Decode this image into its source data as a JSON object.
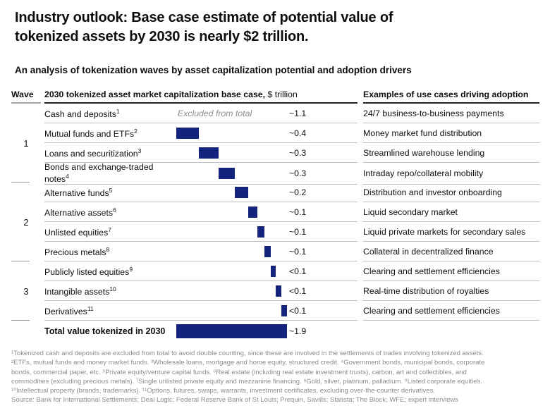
{
  "title_lines": [
    "Industry outlook: Base case estimate of potential value of",
    "tokenized assets by 2030 is nearly $2 trillion."
  ],
  "subtitle": "An analysis of tokenization waves by asset capitalization potential and adoption drivers",
  "table": {
    "col_wave": "Wave",
    "col_main_bold": "2030 tokenized asset market capitalization base case,",
    "col_main_unit": " $ trillion",
    "col_use": "Examples of use cases driving adoption",
    "waves": [
      {
        "label": "1"
      },
      {
        "label": "2"
      },
      {
        "label": "3"
      }
    ]
  },
  "rows": [
    {
      "label": "Cash and deposits",
      "sup": "1",
      "note": "Excluded from total",
      "value": "~1.1",
      "use_case": "24/7 business-to-business payments"
    },
    {
      "label": "Mutual funds and ETFs",
      "sup": "2",
      "value": "~0.4",
      "bar": {
        "start": 0,
        "width": 0.39
      },
      "use_case": "Money market fund distribution"
    },
    {
      "label": "Loans and securitization",
      "sup": "3",
      "value": "~0.3",
      "bar": {
        "start": 0.39,
        "width": 0.34
      },
      "use_case": "Streamlined warehouse lending"
    },
    {
      "label": "Bonds and exchange-traded notes",
      "sup": "4",
      "value": "~0.3",
      "bar": {
        "start": 0.73,
        "width": 0.28
      },
      "use_case": "Intraday repo/collateral mobility"
    },
    {
      "label": "Alternative funds",
      "sup": "5",
      "value": "~0.2",
      "bar": {
        "start": 1.01,
        "width": 0.22
      },
      "use_case": "Distribution and investor onboarding"
    },
    {
      "label": "Alternative assets",
      "sup": "6",
      "value": "~0.1",
      "bar": {
        "start": 1.23,
        "width": 0.16
      },
      "use_case": "Liquid secondary market"
    },
    {
      "label": "Unlisted equities",
      "sup": "7",
      "value": "~0.1",
      "bar": {
        "start": 1.39,
        "width": 0.12
      },
      "use_case": "Liquid private markets for secondary sales"
    },
    {
      "label": "Precious metals",
      "sup": "8",
      "value": "~0.1",
      "bar": {
        "start": 1.51,
        "width": 0.11
      },
      "use_case": "Collateral in decentralized finance"
    },
    {
      "label": "Publicly listed equities",
      "sup": "9",
      "value": "<0.1",
      "bar": {
        "start": 1.62,
        "width": 0.09
      },
      "use_case": "Clearing and settlement efficiencies"
    },
    {
      "label": "Intangible assets",
      "sup": "10",
      "value": "<0.1",
      "bar": {
        "start": 1.71,
        "width": 0.09
      },
      "use_case": "Real-time distribution of royalties"
    },
    {
      "label": "Derivatives",
      "sup": "11",
      "value": "<0.1",
      "bar": {
        "start": 1.8,
        "width": 0.1
      },
      "use_case": "Clearing and settlement efficiencies"
    }
  ],
  "total": {
    "label": "Total value tokenized in 2030",
    "value": "~1.9",
    "bar": {
      "start": 0,
      "width": 1.9
    }
  },
  "footnote_lines": [
    "¹Tokenized cash and deposits are excluded from total to avoid double counting, since these are involved in the settlements of trades involving tokenized assets.",
    "²ETFs, mutual funds and money market funds. ³Wholesale loans, mortgage and home equity, structured credit. ⁴Government bonds, municipal bonds, corporate",
    "bonds, commercial paper, etc. ⁵Private equity/venture capital funds. ⁶Real estate (including real estate investment trusts), carbon, art and collectibles, and",
    "commodities (excluding precious metals). ⁷Single unlisted private equity and mezzanine financing. ⁸Gold, silver, platinum, palladium. ⁹Listed corporate equities.",
    "¹⁰Intellectual property (brands, trademarks). ¹¹Options, futures, swaps, warrants, investment certificates, excluding over-the-counter derivatives.",
    "Source: Bank for International Settlements; Deal Logic; Federal Reserve Bank of St Louis; Prequin, Savills; Statista; The Block; WFE; expert interviews"
  ],
  "colors": {
    "bar_navy": "#14247e",
    "footnote_gray": "#8c8c8c"
  },
  "chart_data": {
    "type": "bar",
    "subtype": "waterfall",
    "title": "2030 tokenized asset market capitalization base case, $ trillion",
    "unit": "$ trillion",
    "orientation": "horizontal",
    "xlim": [
      0,
      1.9
    ],
    "grid": false,
    "bar_color": "#14247e",
    "categories": [
      "Cash and deposits",
      "Mutual funds and ETFs",
      "Loans and securitization",
      "Bonds and exchange-traded notes",
      "Alternative funds",
      "Alternative assets",
      "Unlisted equities",
      "Precious metals",
      "Publicly listed equities",
      "Intangible assets",
      "Derivatives",
      "Total value tokenized in 2030"
    ],
    "value_labels": [
      "~1.1",
      "~0.4",
      "~0.3",
      "~0.3",
      "~0.2",
      "~0.1",
      "~0.1",
      "~0.1",
      "<0.1",
      "<0.1",
      "<0.1",
      "~1.9"
    ],
    "values": [
      1.1,
      0.4,
      0.3,
      0.3,
      0.2,
      0.1,
      0.1,
      0.1,
      0.08,
      0.08,
      0.08,
      1.9
    ],
    "excluded_from_total": [
      "Cash and deposits"
    ],
    "waves": {
      "1": [
        "Cash and deposits",
        "Mutual funds and ETFs",
        "Loans and securitization",
        "Bonds and exchange-traded notes"
      ],
      "2": [
        "Alternative funds",
        "Alternative assets",
        "Unlisted equities",
        "Precious metals"
      ],
      "3": [
        "Publicly listed equities",
        "Intangible assets",
        "Derivatives"
      ]
    }
  }
}
